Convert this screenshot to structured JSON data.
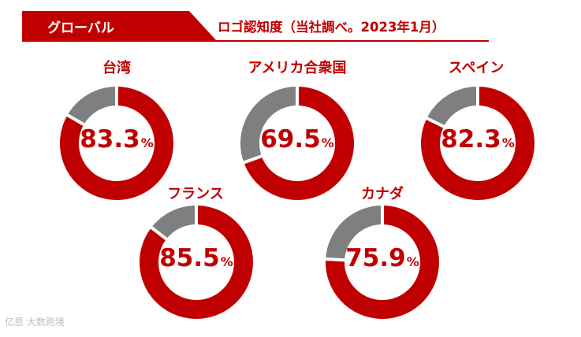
{
  "header": {
    "tag": "グローバル",
    "subtitle": "ロゴ認知度（当社調べ。2023年1月）",
    "accent_color": "#c00000"
  },
  "chart_data": {
    "type": "pie",
    "variant": "donut",
    "unit": "%",
    "colors": {
      "recognized": "#c00000",
      "remaining": "#7f7f7f"
    },
    "series": [
      {
        "name": "台湾",
        "value": 83.3,
        "value_label": "83.3"
      },
      {
        "name": "アメリカ合衆国",
        "value": 69.5,
        "value_label": "69.5"
      },
      {
        "name": "スペイン",
        "value": 82.3,
        "value_label": "82.3"
      },
      {
        "name": "フランス",
        "value": 85.5,
        "value_label": "85.5"
      },
      {
        "name": "カナダ",
        "value": 75.9,
        "value_label": "75.9"
      }
    ]
  },
  "watermark": {
    "text": "亿恩 大数跨境"
  }
}
